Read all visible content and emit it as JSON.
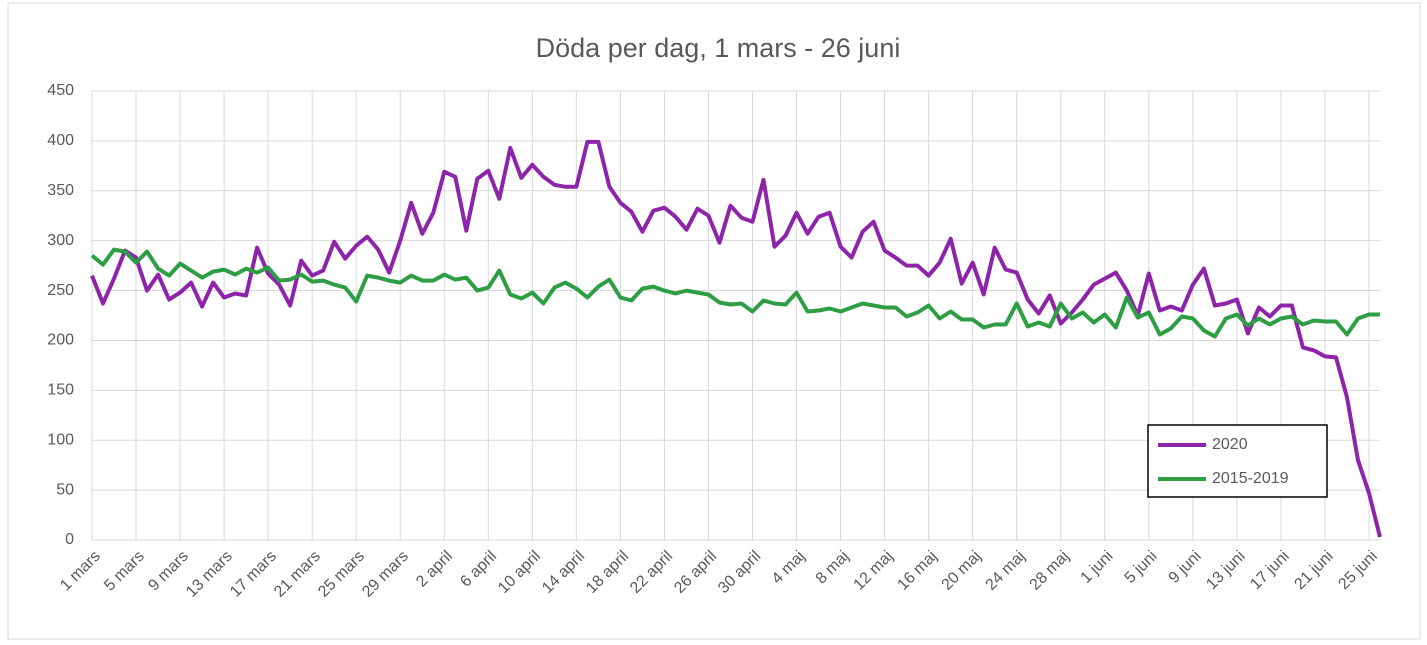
{
  "chart_data": {
    "type": "line",
    "title": "Döda per dag, 1 mars - 26 juni",
    "categories": [
      "1 mars",
      null,
      null,
      null,
      "5 mars",
      null,
      null,
      null,
      "9 mars",
      null,
      null,
      null,
      "13 mars",
      null,
      null,
      null,
      "17 mars",
      null,
      null,
      null,
      "21 mars",
      null,
      null,
      null,
      "25 mars",
      null,
      null,
      null,
      "29 mars",
      null,
      null,
      null,
      "2 april",
      null,
      null,
      null,
      "6 april",
      null,
      null,
      null,
      "10 april",
      null,
      null,
      null,
      "14 april",
      null,
      null,
      null,
      "18 april",
      null,
      null,
      null,
      "22 april",
      null,
      null,
      null,
      "26 april",
      null,
      null,
      null,
      "30 april",
      null,
      null,
      null,
      "4 maj",
      null,
      null,
      null,
      "8 maj",
      null,
      null,
      null,
      "12 maj",
      null,
      null,
      null,
      "16 maj",
      null,
      null,
      null,
      "20 maj",
      null,
      null,
      null,
      "24 maj",
      null,
      null,
      null,
      "28 maj",
      null,
      null,
      null,
      "1 juni",
      null,
      null,
      null,
      "5 juni",
      null,
      null,
      null,
      "9 juni",
      null,
      null,
      null,
      "13 juni",
      null,
      null,
      null,
      "17 juni",
      null,
      null,
      null,
      "21 juni",
      null,
      null,
      null,
      "25 juni",
      null
    ],
    "series": [
      {
        "name": "2020",
        "color": "#8e24aa",
        "values": [
          265,
          237,
          262,
          290,
          283,
          250,
          266,
          241,
          248,
          258,
          234,
          258,
          243,
          247,
          245,
          293,
          267,
          256,
          235,
          280,
          265,
          270,
          299,
          282,
          295,
          304,
          291,
          268,
          300,
          338,
          307,
          328,
          369,
          364,
          310,
          362,
          370,
          342,
          393,
          363,
          376,
          364,
          356,
          354,
          354,
          399,
          399,
          354,
          338,
          329,
          309,
          330,
          333,
          324,
          311,
          332,
          325,
          298,
          335,
          323,
          319,
          361,
          294,
          305,
          328,
          307,
          324,
          328,
          294,
          283,
          309,
          319,
          290,
          283,
          275,
          275,
          265,
          278,
          302,
          257,
          278,
          246,
          293,
          271,
          268,
          241,
          227,
          245,
          217,
          228,
          241,
          256,
          262,
          268,
          250,
          225,
          267,
          230,
          234,
          230,
          256,
          272,
          235,
          237,
          241,
          207,
          233,
          224,
          235,
          235,
          193,
          190,
          184,
          183,
          143,
          80,
          47,
          3
        ]
      },
      {
        "name": "2015-2019",
        "color": "#2e9e44",
        "values": [
          285,
          276,
          291,
          289,
          278,
          289,
          272,
          265,
          277,
          270,
          263,
          269,
          271,
          266,
          272,
          268,
          273,
          260,
          261,
          266,
          259,
          260,
          256,
          253,
          239,
          265,
          263,
          260,
          258,
          265,
          260,
          260,
          266,
          261,
          263,
          250,
          253,
          270,
          246,
          242,
          248,
          237,
          253,
          258,
          252,
          243,
          254,
          261,
          243,
          240,
          252,
          254,
          250,
          247,
          250,
          248,
          246,
          238,
          236,
          237,
          229,
          240,
          237,
          236,
          248,
          229,
          230,
          232,
          229,
          233,
          237,
          235,
          233,
          233,
          224,
          228,
          235,
          222,
          229,
          221,
          221,
          213,
          216,
          216,
          237,
          214,
          218,
          214,
          237,
          222,
          228,
          218,
          226,
          213,
          243,
          223,
          228,
          206,
          212,
          224,
          222,
          210,
          204,
          222,
          226,
          215,
          222,
          216,
          222,
          224,
          216,
          220,
          219,
          219,
          206,
          222,
          226,
          226
        ]
      }
    ],
    "ylim": [
      0,
      450
    ],
    "yticks": [
      0,
      50,
      100,
      150,
      200,
      250,
      300,
      350,
      400,
      450
    ],
    "grid": true,
    "legend": "lower right"
  }
}
